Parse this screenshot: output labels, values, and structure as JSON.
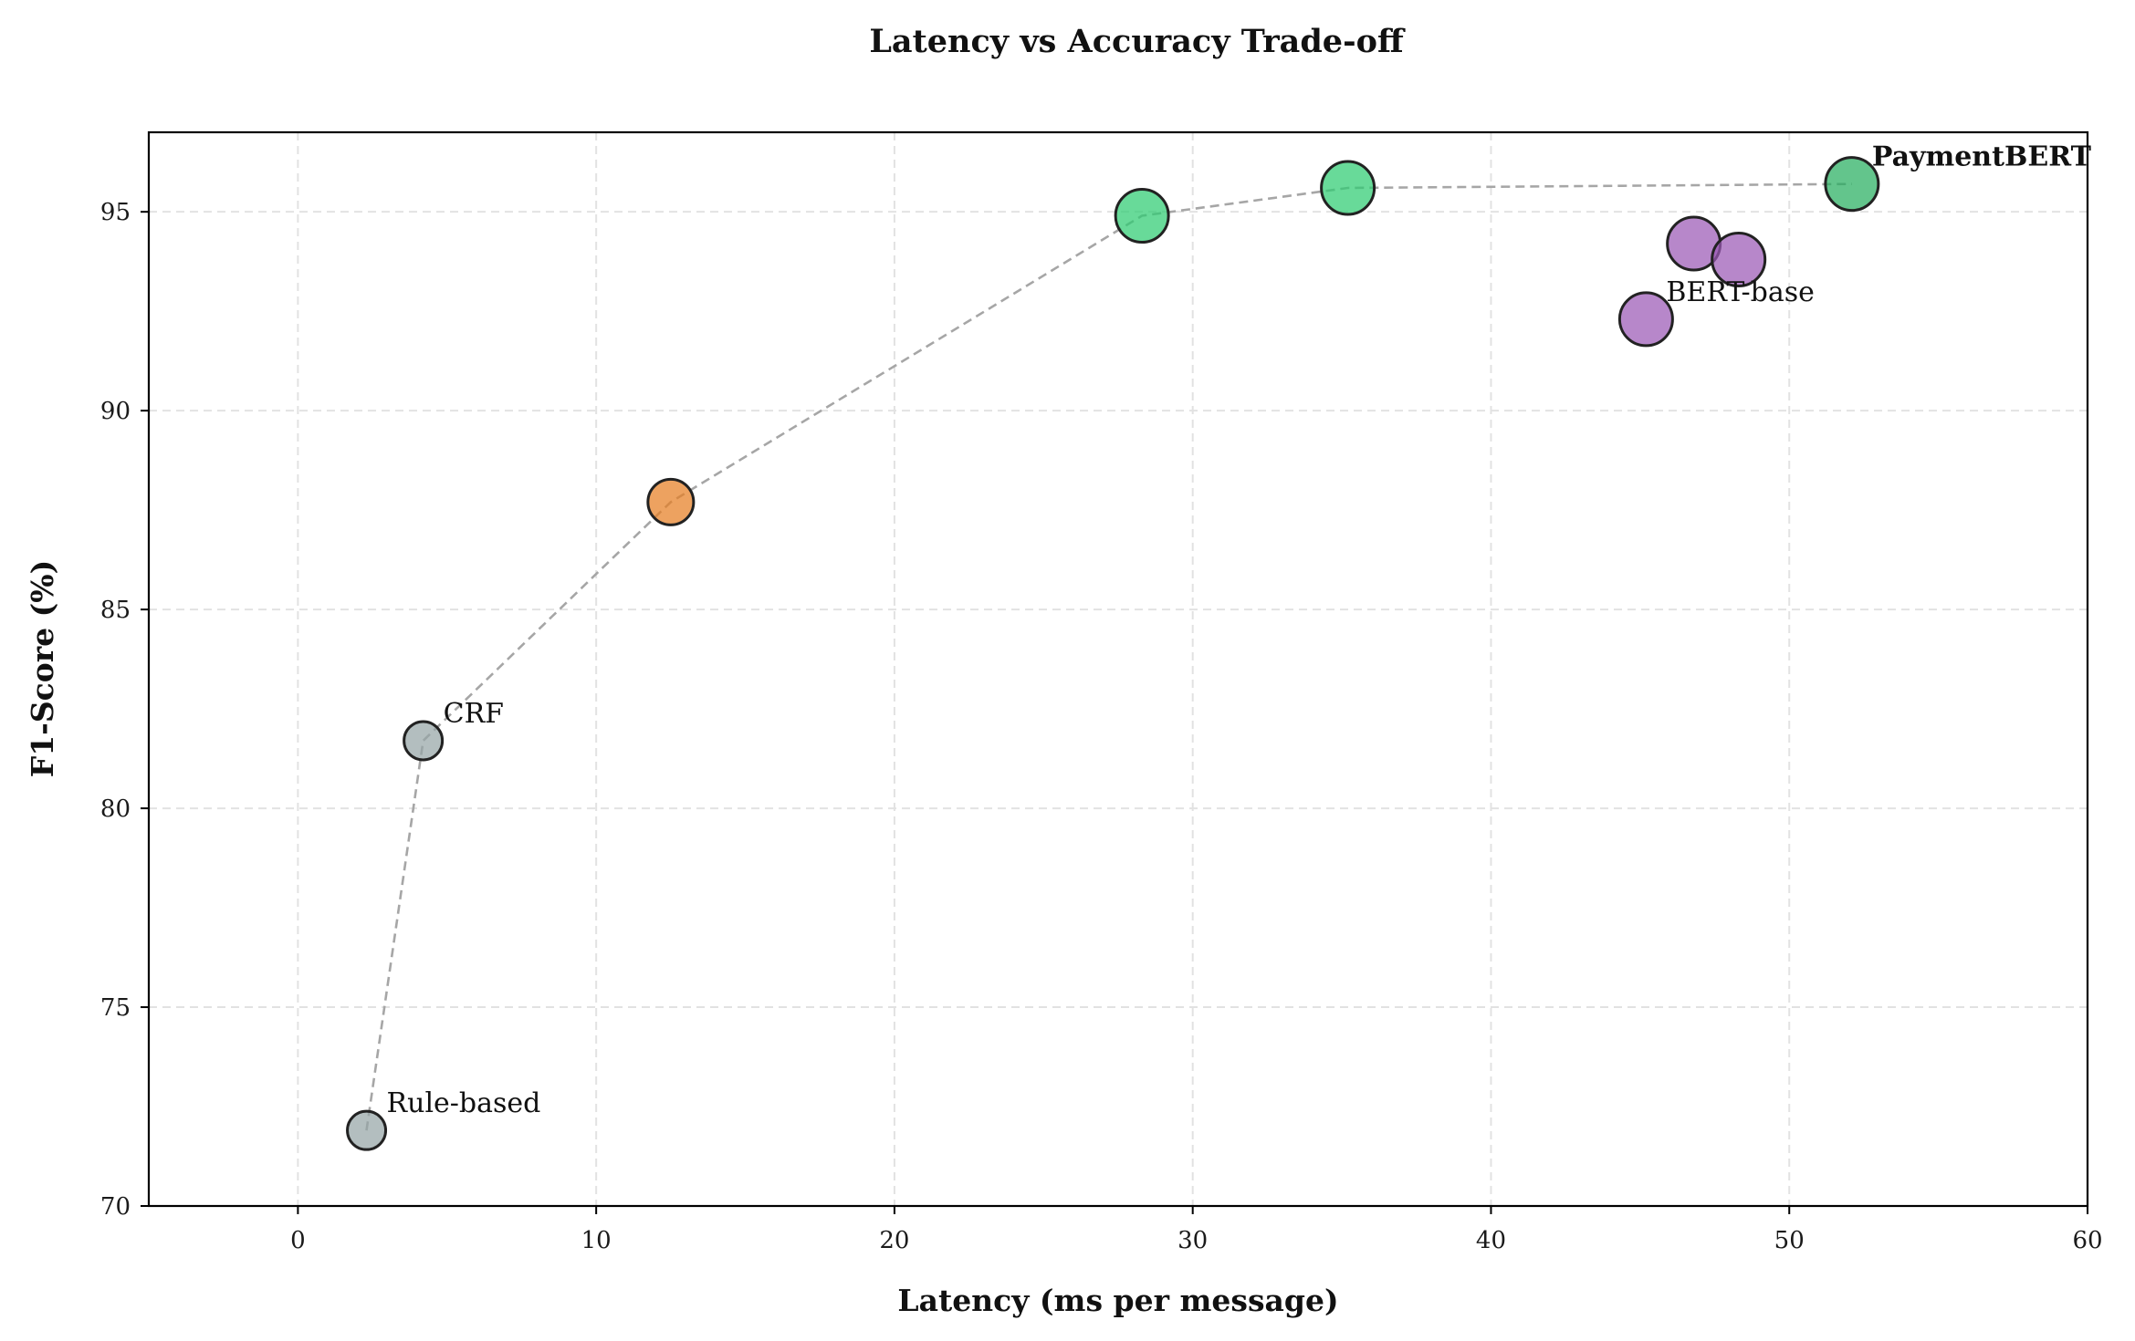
{
  "chart_data": {
    "type": "scatter",
    "title": "Latency vs Accuracy Trade-off",
    "xlabel": "Latency (ms per message)",
    "ylabel": "F1-Score (%)",
    "xlim": [
      -5,
      60
    ],
    "ylim": [
      70,
      97
    ],
    "xticks": [
      0,
      10,
      20,
      30,
      40,
      50,
      60
    ],
    "yticks": [
      70,
      75,
      80,
      85,
      90,
      95
    ],
    "grid": true,
    "frontier_line": {
      "style": "dashed",
      "color": "#a6a6a6"
    },
    "points": [
      {
        "x": 2.3,
        "y": 71.9,
        "color": "#95a5a6",
        "size": "small",
        "frontier": true,
        "label": "Rule-based",
        "bold": false
      },
      {
        "x": 4.2,
        "y": 81.7,
        "color": "#95a5a6",
        "size": "small",
        "frontier": true,
        "label": "CRF",
        "bold": false
      },
      {
        "x": 12.5,
        "y": 87.7,
        "color": "#e67e22",
        "size": "medium",
        "frontier": true,
        "label": "",
        "bold": false
      },
      {
        "x": 28.3,
        "y": 94.9,
        "color": "#2ecc71",
        "size": "large",
        "frontier": true,
        "label": "",
        "bold": false
      },
      {
        "x": 35.2,
        "y": 95.6,
        "color": "#2ecc71",
        "size": "large",
        "frontier": true,
        "label": "",
        "bold": false
      },
      {
        "x": 52.1,
        "y": 95.7,
        "color": "#27ae60",
        "size": "large",
        "frontier": true,
        "label": "PaymentBERT",
        "bold": true
      },
      {
        "x": 45.2,
        "y": 92.3,
        "color": "#9b59b6",
        "size": "large",
        "frontier": false,
        "label": "BERT-base",
        "bold": false
      },
      {
        "x": 46.8,
        "y": 94.2,
        "color": "#9b59b6",
        "size": "large",
        "frontier": false,
        "label": "",
        "bold": false
      },
      {
        "x": 48.3,
        "y": 93.8,
        "color": "#9b59b6",
        "size": "large",
        "frontier": false,
        "label": "",
        "bold": false
      }
    ]
  }
}
